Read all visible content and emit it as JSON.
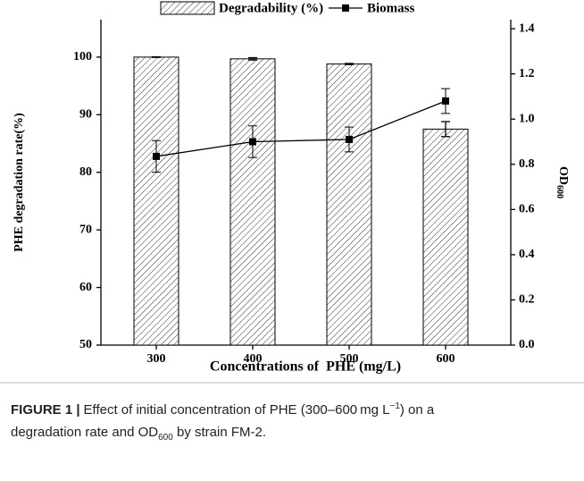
{
  "chart_data": {
    "type": "bar_line",
    "xlabel": "Concentrations of  PHE (mg/L)",
    "ylabel": "PHE degradation rate(%)",
    "y2label": "OD",
    "y2label_sub": "600",
    "categories": [
      "300",
      "400",
      "500",
      "600"
    ],
    "series": [
      {
        "name": "Degradability (%)",
        "type": "bar",
        "color": "#000000",
        "values": [
          100,
          99.7,
          98.8,
          87.5
        ],
        "errors": [
          0.05,
          0.2,
          0.1,
          1.3
        ]
      },
      {
        "name": "Biomass",
        "type": "line",
        "axis": "y2",
        "color": "#000000",
        "values": [
          0.835,
          0.9,
          0.91,
          1.08
        ],
        "errors": [
          0.07,
          0.07,
          0.055,
          0.055
        ]
      }
    ],
    "ylim": [
      50,
      106.5
    ],
    "yticks": [
      50,
      60,
      70,
      80,
      90,
      100
    ],
    "y2lim": [
      0,
      1.44
    ],
    "y2ticks": [
      {
        "value": 0,
        "label": "0.0"
      },
      0.2,
      0.4,
      0.6,
      0.8,
      {
        "value": 1,
        "label": "1.0"
      },
      1.2,
      1.4
    ],
    "legend": "top"
  },
  "caption": {
    "label": "FIGURE 1 |",
    "text1": "Effect of initial concentration of PHE (300–600 mg L",
    "sup": "−1",
    "text2": ") on a",
    "text3": "degradation rate and OD",
    "sub": "600",
    "text4": " by strain FM-2."
  }
}
